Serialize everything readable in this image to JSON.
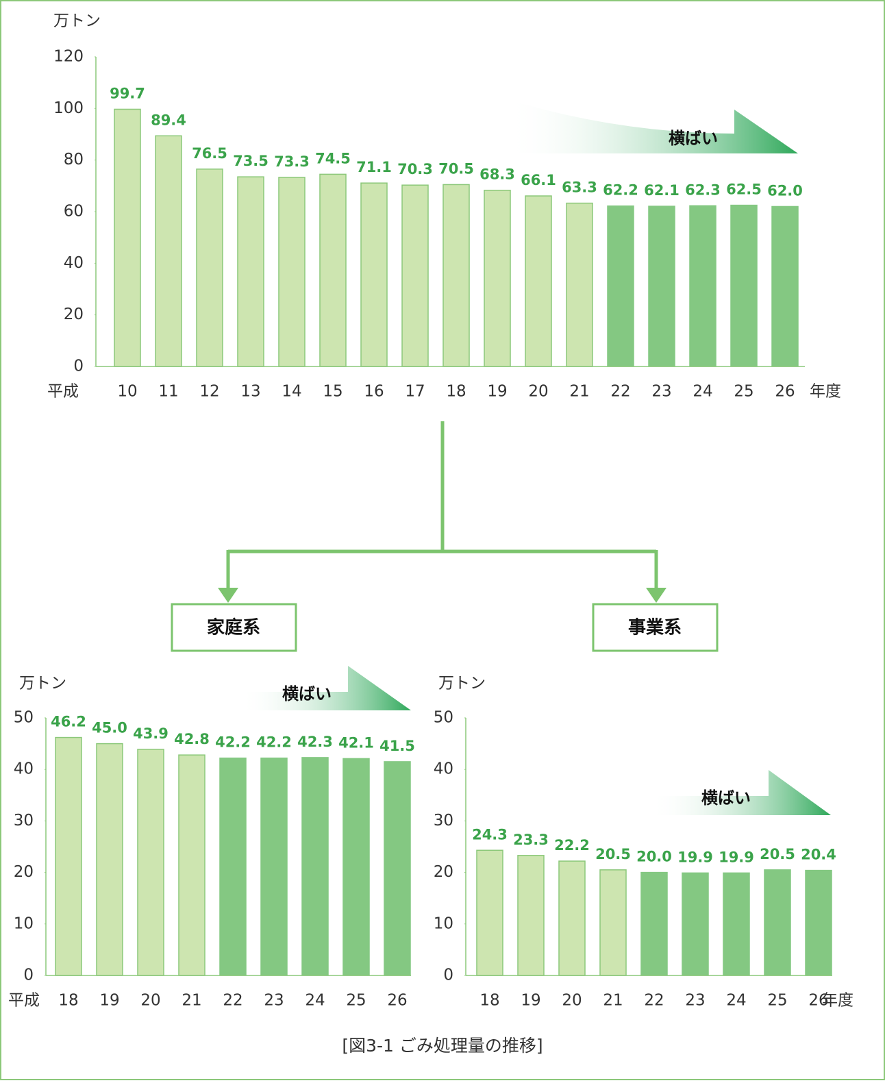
{
  "chart_data": [
    {
      "type": "bar",
      "y_label": "万トン",
      "x_prefix": "平成",
      "x_suffix": "年度",
      "annotation": "横ばい",
      "categories": [
        "10",
        "11",
        "12",
        "13",
        "14",
        "15",
        "16",
        "17",
        "18",
        "19",
        "20",
        "21",
        "22",
        "23",
        "24",
        "25",
        "26"
      ],
      "values": [
        99.7,
        89.4,
        76.5,
        73.5,
        73.3,
        74.5,
        71.1,
        70.3,
        70.5,
        68.3,
        66.1,
        63.3,
        62.2,
        62.1,
        62.3,
        62.5,
        62.0
      ],
      "value_labels": [
        "99.7",
        "89.4",
        "76.5",
        "73.5",
        "73.3",
        "74.5",
        "71.1",
        "70.3",
        "70.5",
        "68.3",
        "66.1",
        "63.3",
        "62.2",
        "62.1",
        "62.3",
        "62.5",
        "62.0"
      ],
      "colors": [
        "#cde5b0",
        "#cde5b0",
        "#cde5b0",
        "#cde5b0",
        "#cde5b0",
        "#cde5b0",
        "#cde5b0",
        "#cde5b0",
        "#cde5b0",
        "#cde5b0",
        "#cde5b0",
        "#cde5b0",
        "#84c882",
        "#84c882",
        "#84c882",
        "#84c882",
        "#84c882"
      ],
      "ylim": [
        0,
        120
      ],
      "yticks": [
        0,
        20,
        40,
        60,
        80,
        100,
        120
      ]
    },
    {
      "type": "bar",
      "y_label": "万トン",
      "x_prefix": "平成",
      "annotation": "横ばい",
      "categories": [
        "18",
        "19",
        "20",
        "21",
        "22",
        "23",
        "24",
        "25",
        "26"
      ],
      "values": [
        46.2,
        45.0,
        43.9,
        42.8,
        42.2,
        42.2,
        42.3,
        42.1,
        41.5
      ],
      "value_labels": [
        "46.2",
        "45.0",
        "43.9",
        "42.8",
        "42.2",
        "42.2",
        "42.3",
        "42.1",
        "41.5"
      ],
      "colors": [
        "#cde5b0",
        "#cde5b0",
        "#cde5b0",
        "#cde5b0",
        "#84c882",
        "#84c882",
        "#84c882",
        "#84c882",
        "#84c882"
      ],
      "ylim": [
        0,
        50
      ],
      "yticks": [
        0,
        10,
        20,
        30,
        40,
        50
      ]
    },
    {
      "type": "bar",
      "y_label": "万トン",
      "x_suffix": "年度",
      "annotation": "横ばい",
      "categories": [
        "18",
        "19",
        "20",
        "21",
        "22",
        "23",
        "24",
        "25",
        "26"
      ],
      "values": [
        24.3,
        23.3,
        22.2,
        20.5,
        20.0,
        19.9,
        19.9,
        20.5,
        20.4
      ],
      "value_labels": [
        "24.3",
        "23.3",
        "22.2",
        "20.5",
        "20.0",
        "19.9",
        "19.9",
        "20.5",
        "20.4"
      ],
      "colors": [
        "#cde5b0",
        "#cde5b0",
        "#cde5b0",
        "#cde5b0",
        "#84c882",
        "#84c882",
        "#84c882",
        "#84c882",
        "#84c882"
      ],
      "ylim": [
        0,
        50
      ],
      "yticks": [
        0,
        10,
        20,
        30,
        40,
        50
      ]
    }
  ],
  "boxes": [
    "家庭系",
    "事業系"
  ],
  "caption": "[図3-1 ごみ処理量の推移]"
}
